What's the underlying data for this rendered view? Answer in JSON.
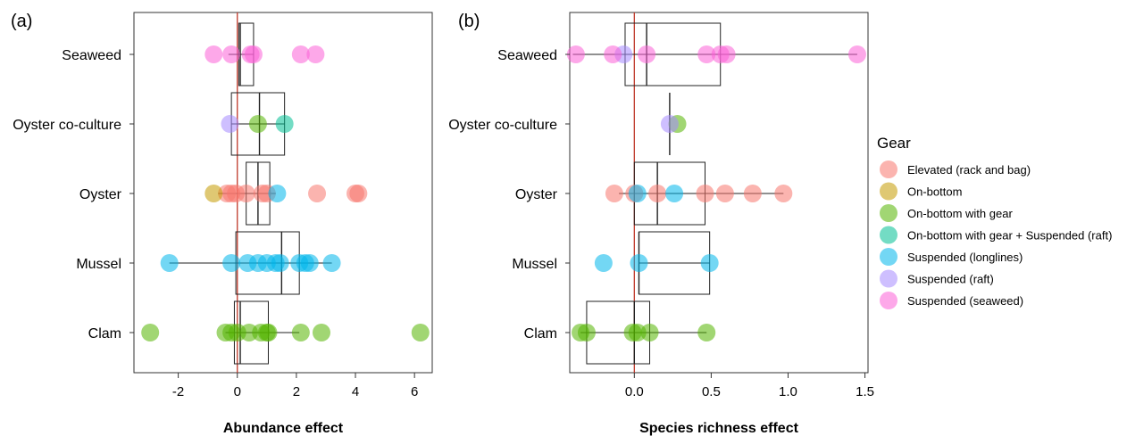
{
  "chart_data": [
    {
      "type": "scatter",
      "panel_label": "(a)",
      "xlabel": "Abundance effect",
      "ylabel": "",
      "xlim": [
        -3.5,
        6.6
      ],
      "xticks": [
        "-2",
        "0",
        "2",
        "4",
        "6"
      ],
      "xtick_values": [
        -2,
        0,
        2,
        4,
        6
      ],
      "zero_line": 0,
      "categories": [
        "Seaweed",
        "Oyster co-culture",
        "Oyster",
        "Mussel",
        "Clam"
      ],
      "boxes": [
        {
          "category": "Seaweed",
          "q1": 0.05,
          "median": 0.1,
          "q3": 0.55,
          "whisker_low": -0.3,
          "whisker_high": 0.55
        },
        {
          "category": "Oyster co-culture",
          "q1": -0.2,
          "median": 0.75,
          "q3": 1.6,
          "whisker_low": -0.2,
          "whisker_high": 1.6
        },
        {
          "category": "Oyster",
          "q1": 0.3,
          "median": 0.7,
          "q3": 1.1,
          "whisker_low": -0.65,
          "whisker_high": 1.3
        },
        {
          "category": "Mussel",
          "q1": -0.05,
          "median": 1.5,
          "q3": 2.1,
          "whisker_low": -2.3,
          "whisker_high": 3.2
        },
        {
          "category": "Clam",
          "q1": -0.1,
          "median": 0.1,
          "q3": 1.05,
          "whisker_low": -0.4,
          "whisker_high": 2.1
        }
      ],
      "series": [
        {
          "name": "Elevated (rack and bag)",
          "points": [
            {
              "category": "Oyster",
              "value": -0.35
            },
            {
              "category": "Oyster",
              "value": -0.2
            },
            {
              "category": "Oyster",
              "value": -0.05
            },
            {
              "category": "Oyster",
              "value": 0.3
            },
            {
              "category": "Oyster",
              "value": 0.85
            },
            {
              "category": "Oyster",
              "value": 1.0
            },
            {
              "category": "Oyster",
              "value": 2.7
            },
            {
              "category": "Oyster",
              "value": 4.0
            },
            {
              "category": "Oyster",
              "value": 4.1
            }
          ]
        },
        {
          "name": "On-bottom",
          "points": [
            {
              "category": "Oyster",
              "value": -0.8
            }
          ]
        },
        {
          "name": "On-bottom with gear",
          "points": [
            {
              "category": "Oyster co-culture",
              "value": 0.7
            },
            {
              "category": "Clam",
              "value": -2.95
            },
            {
              "category": "Clam",
              "value": -0.4
            },
            {
              "category": "Clam",
              "value": -0.2
            },
            {
              "category": "Clam",
              "value": 0.0
            },
            {
              "category": "Clam",
              "value": 0.4
            },
            {
              "category": "Clam",
              "value": 0.8
            },
            {
              "category": "Clam",
              "value": 1.0
            },
            {
              "category": "Clam",
              "value": 1.05
            },
            {
              "category": "Clam",
              "value": 2.15
            },
            {
              "category": "Clam",
              "value": 2.85
            },
            {
              "category": "Clam",
              "value": 6.2
            }
          ]
        },
        {
          "name": "On-bottom with gear + Suspended (raft)",
          "points": [
            {
              "category": "Oyster co-culture",
              "value": 1.6
            }
          ]
        },
        {
          "name": "Suspended (longlines)",
          "points": [
            {
              "category": "Oyster",
              "value": 1.35
            },
            {
              "category": "Mussel",
              "value": -2.3
            },
            {
              "category": "Mussel",
              "value": -0.2
            },
            {
              "category": "Mussel",
              "value": 0.35
            },
            {
              "category": "Mussel",
              "value": 0.7
            },
            {
              "category": "Mussel",
              "value": 1.0
            },
            {
              "category": "Mussel",
              "value": 1.3
            },
            {
              "category": "Mussel",
              "value": 1.45
            },
            {
              "category": "Mussel",
              "value": 2.1
            },
            {
              "category": "Mussel",
              "value": 2.3
            },
            {
              "category": "Mussel",
              "value": 2.45
            },
            {
              "category": "Mussel",
              "value": 3.2
            }
          ]
        },
        {
          "name": "Suspended (raft)",
          "points": [
            {
              "category": "Oyster co-culture",
              "value": -0.25
            }
          ]
        },
        {
          "name": "Suspended (seaweed)",
          "points": [
            {
              "category": "Seaweed",
              "value": -0.8
            },
            {
              "category": "Seaweed",
              "value": -0.2
            },
            {
              "category": "Seaweed",
              "value": 0.45
            },
            {
              "category": "Seaweed",
              "value": 0.55
            },
            {
              "category": "Seaweed",
              "value": 2.15
            },
            {
              "category": "Seaweed",
              "value": 2.65
            }
          ]
        }
      ]
    },
    {
      "type": "scatter",
      "panel_label": "(b)",
      "xlabel": "Species richness effect",
      "ylabel": "",
      "xlim": [
        -0.42,
        1.52
      ],
      "xticks": [
        "0.0",
        "0.5",
        "1.0",
        "1.5"
      ],
      "xtick_values": [
        0.0,
        0.5,
        1.0,
        1.5
      ],
      "zero_line": 0,
      "categories": [
        "Seaweed",
        "Oyster co-culture",
        "Oyster",
        "Mussel",
        "Clam"
      ],
      "boxes": [
        {
          "category": "Seaweed",
          "q1": -0.06,
          "median": 0.08,
          "q3": 0.56,
          "whisker_low": -0.4,
          "whisker_high": 1.45
        },
        {
          "category": "Oyster co-culture",
          "q1": 0.23,
          "median": 0.23,
          "q3": 0.23,
          "whisker_low": 0.23,
          "whisker_high": 0.23
        },
        {
          "category": "Oyster",
          "q1": 0.0,
          "median": 0.15,
          "q3": 0.46,
          "whisker_low": -0.1,
          "whisker_high": 0.97
        },
        {
          "category": "Mussel",
          "q1": 0.03,
          "median": 0.03,
          "q3": 0.49,
          "whisker_low": 0.03,
          "whisker_high": 0.49
        },
        {
          "category": "Clam",
          "q1": -0.31,
          "median": 0.0,
          "q3": 0.1,
          "whisker_low": -0.35,
          "whisker_high": 0.47
        }
      ],
      "series": [
        {
          "name": "Elevated (rack and bag)",
          "points": [
            {
              "category": "Oyster",
              "value": -0.13
            },
            {
              "category": "Oyster",
              "value": 0.0
            },
            {
              "category": "Oyster",
              "value": 0.15
            },
            {
              "category": "Oyster",
              "value": 0.46
            },
            {
              "category": "Oyster",
              "value": 0.59
            },
            {
              "category": "Oyster",
              "value": 0.77
            },
            {
              "category": "Oyster",
              "value": 0.97
            }
          ]
        },
        {
          "name": "On-bottom",
          "points": []
        },
        {
          "name": "On-bottom with gear",
          "points": [
            {
              "category": "Oyster co-culture",
              "value": 0.28
            },
            {
              "category": "Clam",
              "value": -0.35
            },
            {
              "category": "Clam",
              "value": -0.31
            },
            {
              "category": "Clam",
              "value": -0.01
            },
            {
              "category": "Clam",
              "value": 0.02
            },
            {
              "category": "Clam",
              "value": 0.1
            },
            {
              "category": "Clam",
              "value": 0.47
            }
          ]
        },
        {
          "name": "On-bottom with gear + Suspended (raft)",
          "points": []
        },
        {
          "name": "Suspended (longlines)",
          "points": [
            {
              "category": "Oyster",
              "value": 0.02
            },
            {
              "category": "Oyster",
              "value": 0.26
            },
            {
              "category": "Mussel",
              "value": -0.2
            },
            {
              "category": "Mussel",
              "value": 0.03
            },
            {
              "category": "Mussel",
              "value": 0.49
            }
          ]
        },
        {
          "name": "Suspended (raft)",
          "points": [
            {
              "category": "Seaweed",
              "value": -0.07
            },
            {
              "category": "Oyster co-culture",
              "value": 0.23
            }
          ]
        },
        {
          "name": "Suspended (seaweed)",
          "points": [
            {
              "category": "Seaweed",
              "value": -0.38
            },
            {
              "category": "Seaweed",
              "value": -0.14
            },
            {
              "category": "Seaweed",
              "value": 0.08
            },
            {
              "category": "Seaweed",
              "value": 0.47
            },
            {
              "category": "Seaweed",
              "value": 0.56
            },
            {
              "category": "Seaweed",
              "value": 0.6
            },
            {
              "category": "Seaweed",
              "value": 1.45
            }
          ]
        }
      ]
    }
  ],
  "legend": {
    "title": "Gear",
    "placement": "right",
    "items": [
      {
        "label": "Elevated (rack and bag)",
        "color": "#F8766D"
      },
      {
        "label": "On-bottom",
        "color": "#C49A00"
      },
      {
        "label": "On-bottom with gear",
        "color": "#53B400"
      },
      {
        "label": "On-bottom with gear + Suspended (raft)",
        "color": "#00C094"
      },
      {
        "label": "Suspended (longlines)",
        "color": "#00B6EB"
      },
      {
        "label": "Suspended (raft)",
        "color": "#A58AFF"
      },
      {
        "label": "Suspended (seaweed)",
        "color": "#FB61D7"
      }
    ]
  },
  "colors": {
    "zero_line": "#C0392B",
    "axis": "#333333",
    "box": "#222222"
  }
}
